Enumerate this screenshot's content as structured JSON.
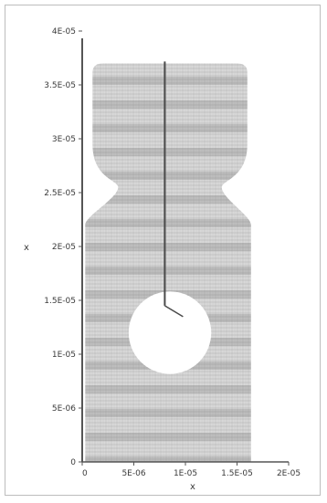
{
  "figure": {
    "xlabel": "x",
    "ylabel": "x",
    "x_ticks": [
      "0",
      "5E-06",
      "1E-05",
      "1.5E-05",
      "2E-05"
    ],
    "y_ticks": [
      "0",
      "5E-06",
      "1E-05",
      "1.5E-05",
      "2E-05",
      "2.5E-05",
      "3E-05",
      "3.5E-05",
      "4E-05"
    ],
    "xlim": [
      0,
      2e-05
    ],
    "ylim": [
      0,
      4e-05
    ],
    "colors": {
      "mesh": "#8c8c8c",
      "crack": "#4a4a4a",
      "axis": "#555555",
      "hole": "#ffffff"
    }
  },
  "geometry": {
    "specimen_x": [
      1e-06,
      1.6e-05
    ],
    "specimen_y": [
      0,
      3.7e-05
    ],
    "notch_center": [
      8.5e-06,
      1.2e-05
    ],
    "notch_radius": 4e-06,
    "crack_top_y": 3.7e-05,
    "crack_x": 8e-06
  }
}
